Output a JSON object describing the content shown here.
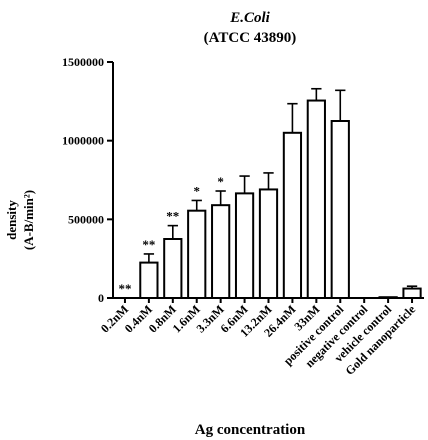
{
  "chart_data": {
    "type": "bar",
    "title": "E.Coli",
    "subtitle": "(ATCC 43890)",
    "xlabel": "Ag concentration",
    "ylabel": "density",
    "ylabel_unit": "(A-B/min²)",
    "ylim": [
      0,
      1500000
    ],
    "yticks": [
      0,
      500000,
      1000000,
      1500000
    ],
    "ytick_labels": [
      "0",
      "500000",
      "1000000",
      "1500000"
    ],
    "grid": false,
    "categories": [
      "0.2nM",
      "0.4nM",
      "0.8nM",
      "1.6nM",
      "3.3nM",
      "6.6nM",
      "13.2nM",
      "26.4nM",
      "33nM",
      "positive control",
      "negative control",
      "vehicle control",
      "Gold nanoparticle"
    ],
    "values": [
      0,
      225000,
      375000,
      555000,
      590000,
      665000,
      690000,
      1050000,
      1255000,
      1125000,
      0,
      5000,
      60000
    ],
    "errors": [
      0,
      55000,
      85000,
      65000,
      90000,
      110000,
      105000,
      185000,
      75000,
      195000,
      0,
      0,
      15000
    ],
    "significance": [
      "**",
      "**",
      "**",
      "*",
      "*",
      "",
      "",
      "",
      "",
      "",
      "",
      "",
      ""
    ]
  }
}
